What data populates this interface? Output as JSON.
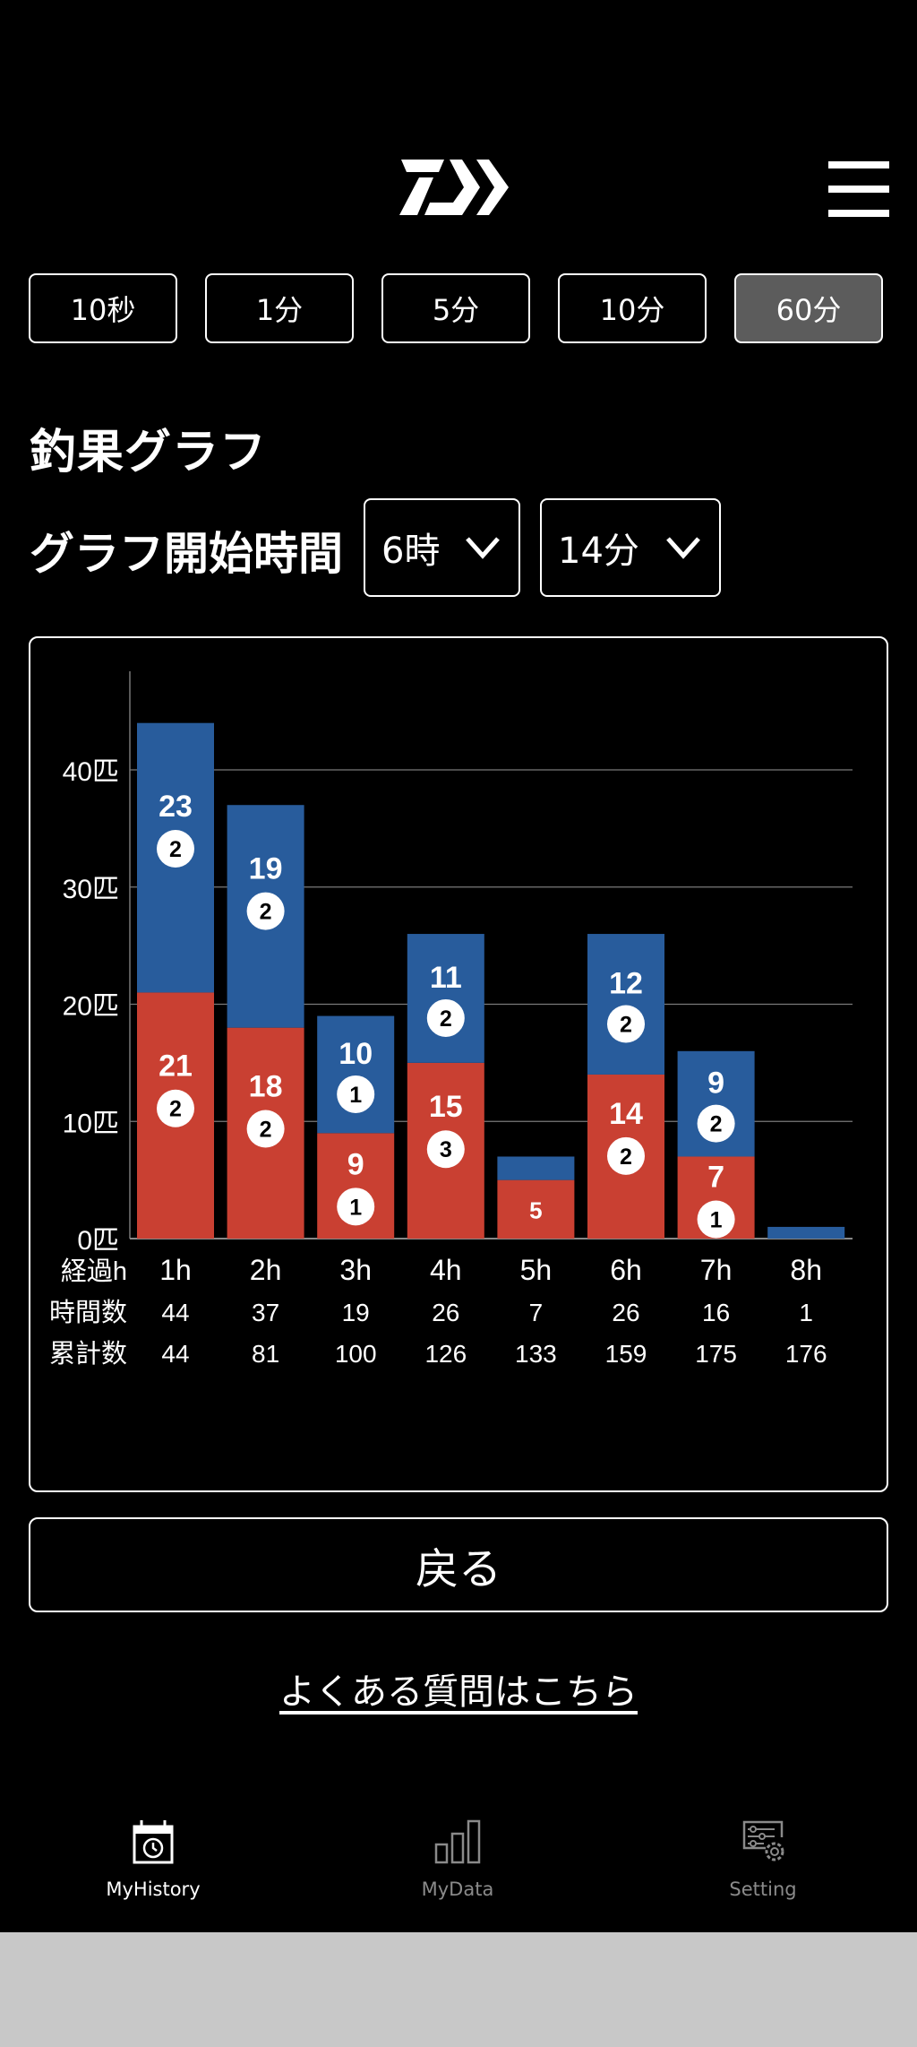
{
  "header": {
    "logo": "daiwa-logo-icon",
    "menu_icon": "hamburger-menu-icon"
  },
  "interval_tabs": [
    {
      "label": "10秒",
      "active": false
    },
    {
      "label": "1分",
      "active": false
    },
    {
      "label": "5分",
      "active": false
    },
    {
      "label": "10分",
      "active": false
    },
    {
      "label": "60分",
      "active": true
    }
  ],
  "page_title": "釣果グラフ",
  "start_time": {
    "label": "グラフ開始時間",
    "hour_value": "6時",
    "minute_value": "14分"
  },
  "chart_data": {
    "type": "bar",
    "stacked": true,
    "categories": [
      "1h",
      "2h",
      "3h",
      "4h",
      "5h",
      "6h",
      "7h",
      "8h"
    ],
    "series": [
      {
        "name": "red",
        "color": "#c94032",
        "values": [
          21,
          18,
          9,
          15,
          5,
          14,
          7,
          0
        ],
        "badges": [
          2,
          2,
          1,
          3,
          null,
          2,
          1,
          null
        ],
        "show_labels": [
          true,
          true,
          true,
          true,
          true,
          true,
          true,
          false
        ]
      },
      {
        "name": "blue",
        "color": "#285c9c",
        "values": [
          23,
          19,
          10,
          11,
          2,
          12,
          9,
          1
        ],
        "badges": [
          2,
          2,
          1,
          2,
          null,
          2,
          2,
          null
        ],
        "show_labels": [
          true,
          true,
          true,
          true,
          false,
          true,
          true,
          false
        ]
      }
    ],
    "y_ticks": [
      0,
      10,
      20,
      30,
      40
    ],
    "y_tick_suffix": "匹",
    "ylim": [
      0,
      48
    ],
    "grid": true,
    "table": {
      "row_labels": [
        "経過h",
        "時間数",
        "累計数"
      ],
      "hourly": [
        44,
        37,
        19,
        26,
        7,
        26,
        16,
        1
      ],
      "cumulative": [
        44,
        81,
        100,
        126,
        133,
        159,
        175,
        176
      ]
    }
  },
  "back_button": "戻る",
  "faq_link": "よくある質問はこちら",
  "bottom_nav": [
    {
      "label": "MyHistory",
      "icon": "calendar-history-icon",
      "active": true
    },
    {
      "label": "MyData",
      "icon": "bar-chart-icon",
      "active": false
    },
    {
      "label": "Setting",
      "icon": "settings-gear-icon",
      "active": false
    }
  ]
}
